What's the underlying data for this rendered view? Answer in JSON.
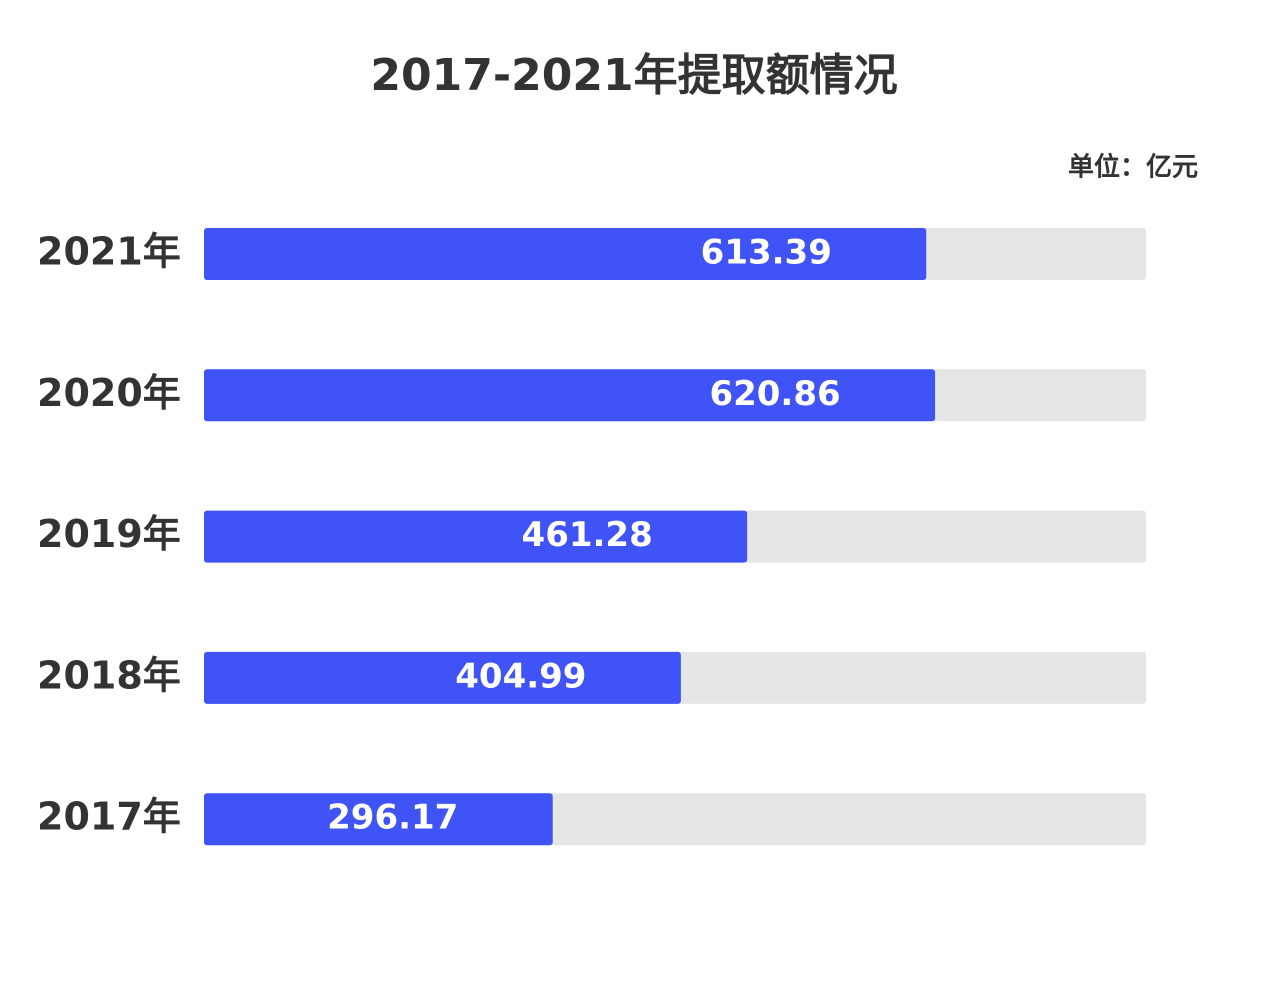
{
  "chart_data": {
    "type": "bar",
    "orientation": "horizontal",
    "title": "2017-2021年提取额情况",
    "unit_label": "单位：亿元",
    "categories": [
      "2021年",
      "2020年",
      "2019年",
      "2018年",
      "2017年"
    ],
    "values": [
      613.39,
      620.86,
      461.28,
      404.99,
      296.17
    ],
    "color": "#3f53f7",
    "track_color": "#e5e5e5",
    "xlim": [
      0,
      800
    ]
  }
}
